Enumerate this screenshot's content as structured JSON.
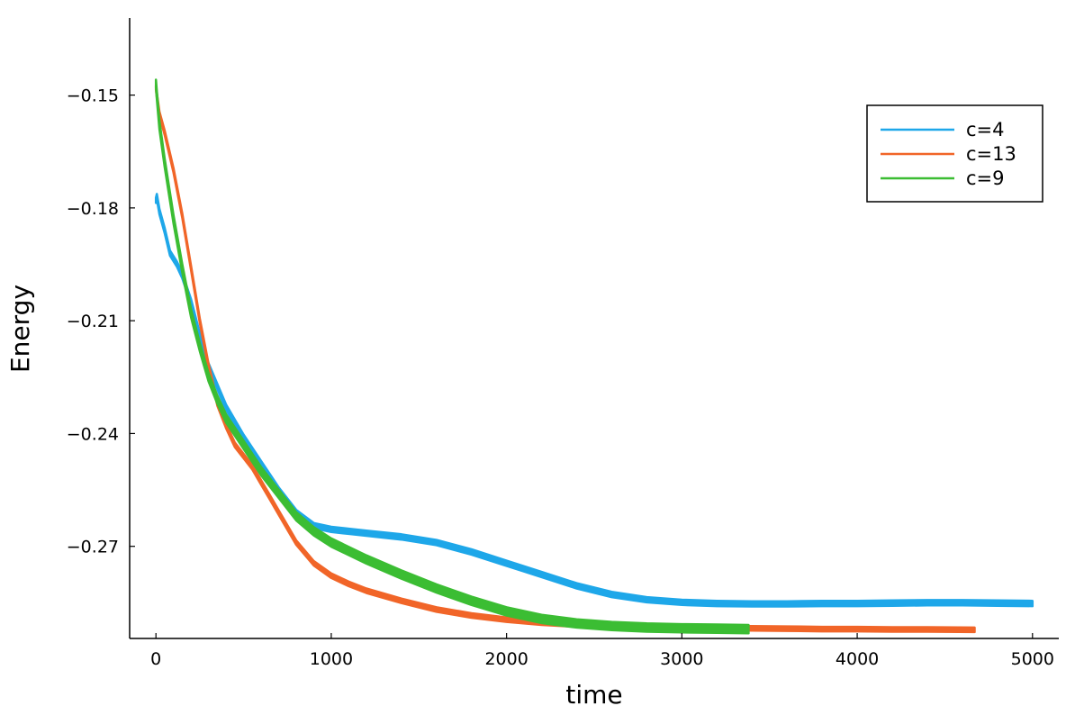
{
  "chart_data": {
    "type": "line",
    "title": "",
    "xlabel": "time",
    "ylabel": "Energy",
    "xlim": [
      -150,
      5150
    ],
    "ylim": [
      -0.2945,
      -0.1295
    ],
    "xticks": [
      0,
      1000,
      2000,
      3000,
      4000,
      5000
    ],
    "xtick_labels": [
      "0",
      "1000",
      "2000",
      "3000",
      "4000",
      "5000"
    ],
    "yticks": [
      -0.15,
      -0.18,
      -0.21,
      -0.24,
      -0.27
    ],
    "ytick_labels": [
      "−0.15",
      "−0.18",
      "−0.21",
      "−0.24",
      "−0.27"
    ],
    "grid": false,
    "legend_position": "top-right",
    "series": [
      {
        "name": "c=4",
        "color": "#1ea7e9",
        "band_width": 0.0014,
        "x": [
          0,
          5,
          20,
          50,
          80,
          120,
          150,
          200,
          250,
          300,
          400,
          500,
          600,
          700,
          800,
          900,
          1000,
          1100,
          1200,
          1400,
          1600,
          1800,
          2000,
          2200,
          2400,
          2600,
          2800,
          3000,
          3200,
          3400,
          3600,
          3800,
          4000,
          4200,
          4400,
          4600,
          4800,
          5000
        ],
        "values": [
          -0.178,
          -0.177,
          -0.181,
          -0.186,
          -0.192,
          -0.195,
          -0.198,
          -0.205,
          -0.214,
          -0.222,
          -0.233,
          -0.241,
          -0.248,
          -0.255,
          -0.261,
          -0.2645,
          -0.2655,
          -0.266,
          -0.2665,
          -0.2675,
          -0.269,
          -0.2715,
          -0.2745,
          -0.2775,
          -0.2805,
          -0.2828,
          -0.2842,
          -0.2849,
          -0.2852,
          -0.2853,
          -0.2853,
          -0.2852,
          -0.2852,
          -0.2851,
          -0.285,
          -0.285,
          -0.2851,
          -0.2852
        ]
      },
      {
        "name": "c=13",
        "color": "#f16528",
        "band_width": 0.0012,
        "x": [
          0,
          5,
          20,
          50,
          100,
          150,
          200,
          250,
          300,
          350,
          400,
          450,
          500,
          550,
          600,
          650,
          700,
          800,
          900,
          1000,
          1100,
          1200,
          1400,
          1600,
          1800,
          2000,
          2200,
          2400,
          2600,
          2800,
          3000,
          3200,
          3400,
          3600,
          3800,
          4000,
          4200,
          4400,
          4670
        ],
        "values": [
          -0.148,
          -0.15,
          -0.155,
          -0.16,
          -0.17,
          -0.182,
          -0.196,
          -0.21,
          -0.222,
          -0.232,
          -0.238,
          -0.243,
          -0.246,
          -0.249,
          -0.253,
          -0.257,
          -0.261,
          -0.269,
          -0.2745,
          -0.2778,
          -0.28,
          -0.2818,
          -0.2845,
          -0.2868,
          -0.2884,
          -0.2895,
          -0.2903,
          -0.2908,
          -0.2912,
          -0.2914,
          -0.2916,
          -0.2917,
          -0.2918,
          -0.2919,
          -0.292,
          -0.292,
          -0.2921,
          -0.2921,
          -0.2922
        ]
      },
      {
        "name": "c=9",
        "color": "#3bbd33",
        "band_width": 0.0022,
        "x": [
          0,
          5,
          20,
          50,
          100,
          150,
          200,
          250,
          300,
          350,
          400,
          500,
          600,
          700,
          800,
          900,
          1000,
          1200,
          1400,
          1600,
          1800,
          2000,
          2200,
          2400,
          2600,
          2800,
          3000,
          3200,
          3380
        ],
        "values": [
          -0.147,
          -0.15,
          -0.158,
          -0.168,
          -0.183,
          -0.196,
          -0.208,
          -0.217,
          -0.225,
          -0.231,
          -0.236,
          -0.243,
          -0.25,
          -0.256,
          -0.262,
          -0.266,
          -0.269,
          -0.2735,
          -0.2775,
          -0.2812,
          -0.2845,
          -0.2873,
          -0.2893,
          -0.2905,
          -0.2912,
          -0.2916,
          -0.2918,
          -0.2919,
          -0.292
        ]
      }
    ]
  }
}
